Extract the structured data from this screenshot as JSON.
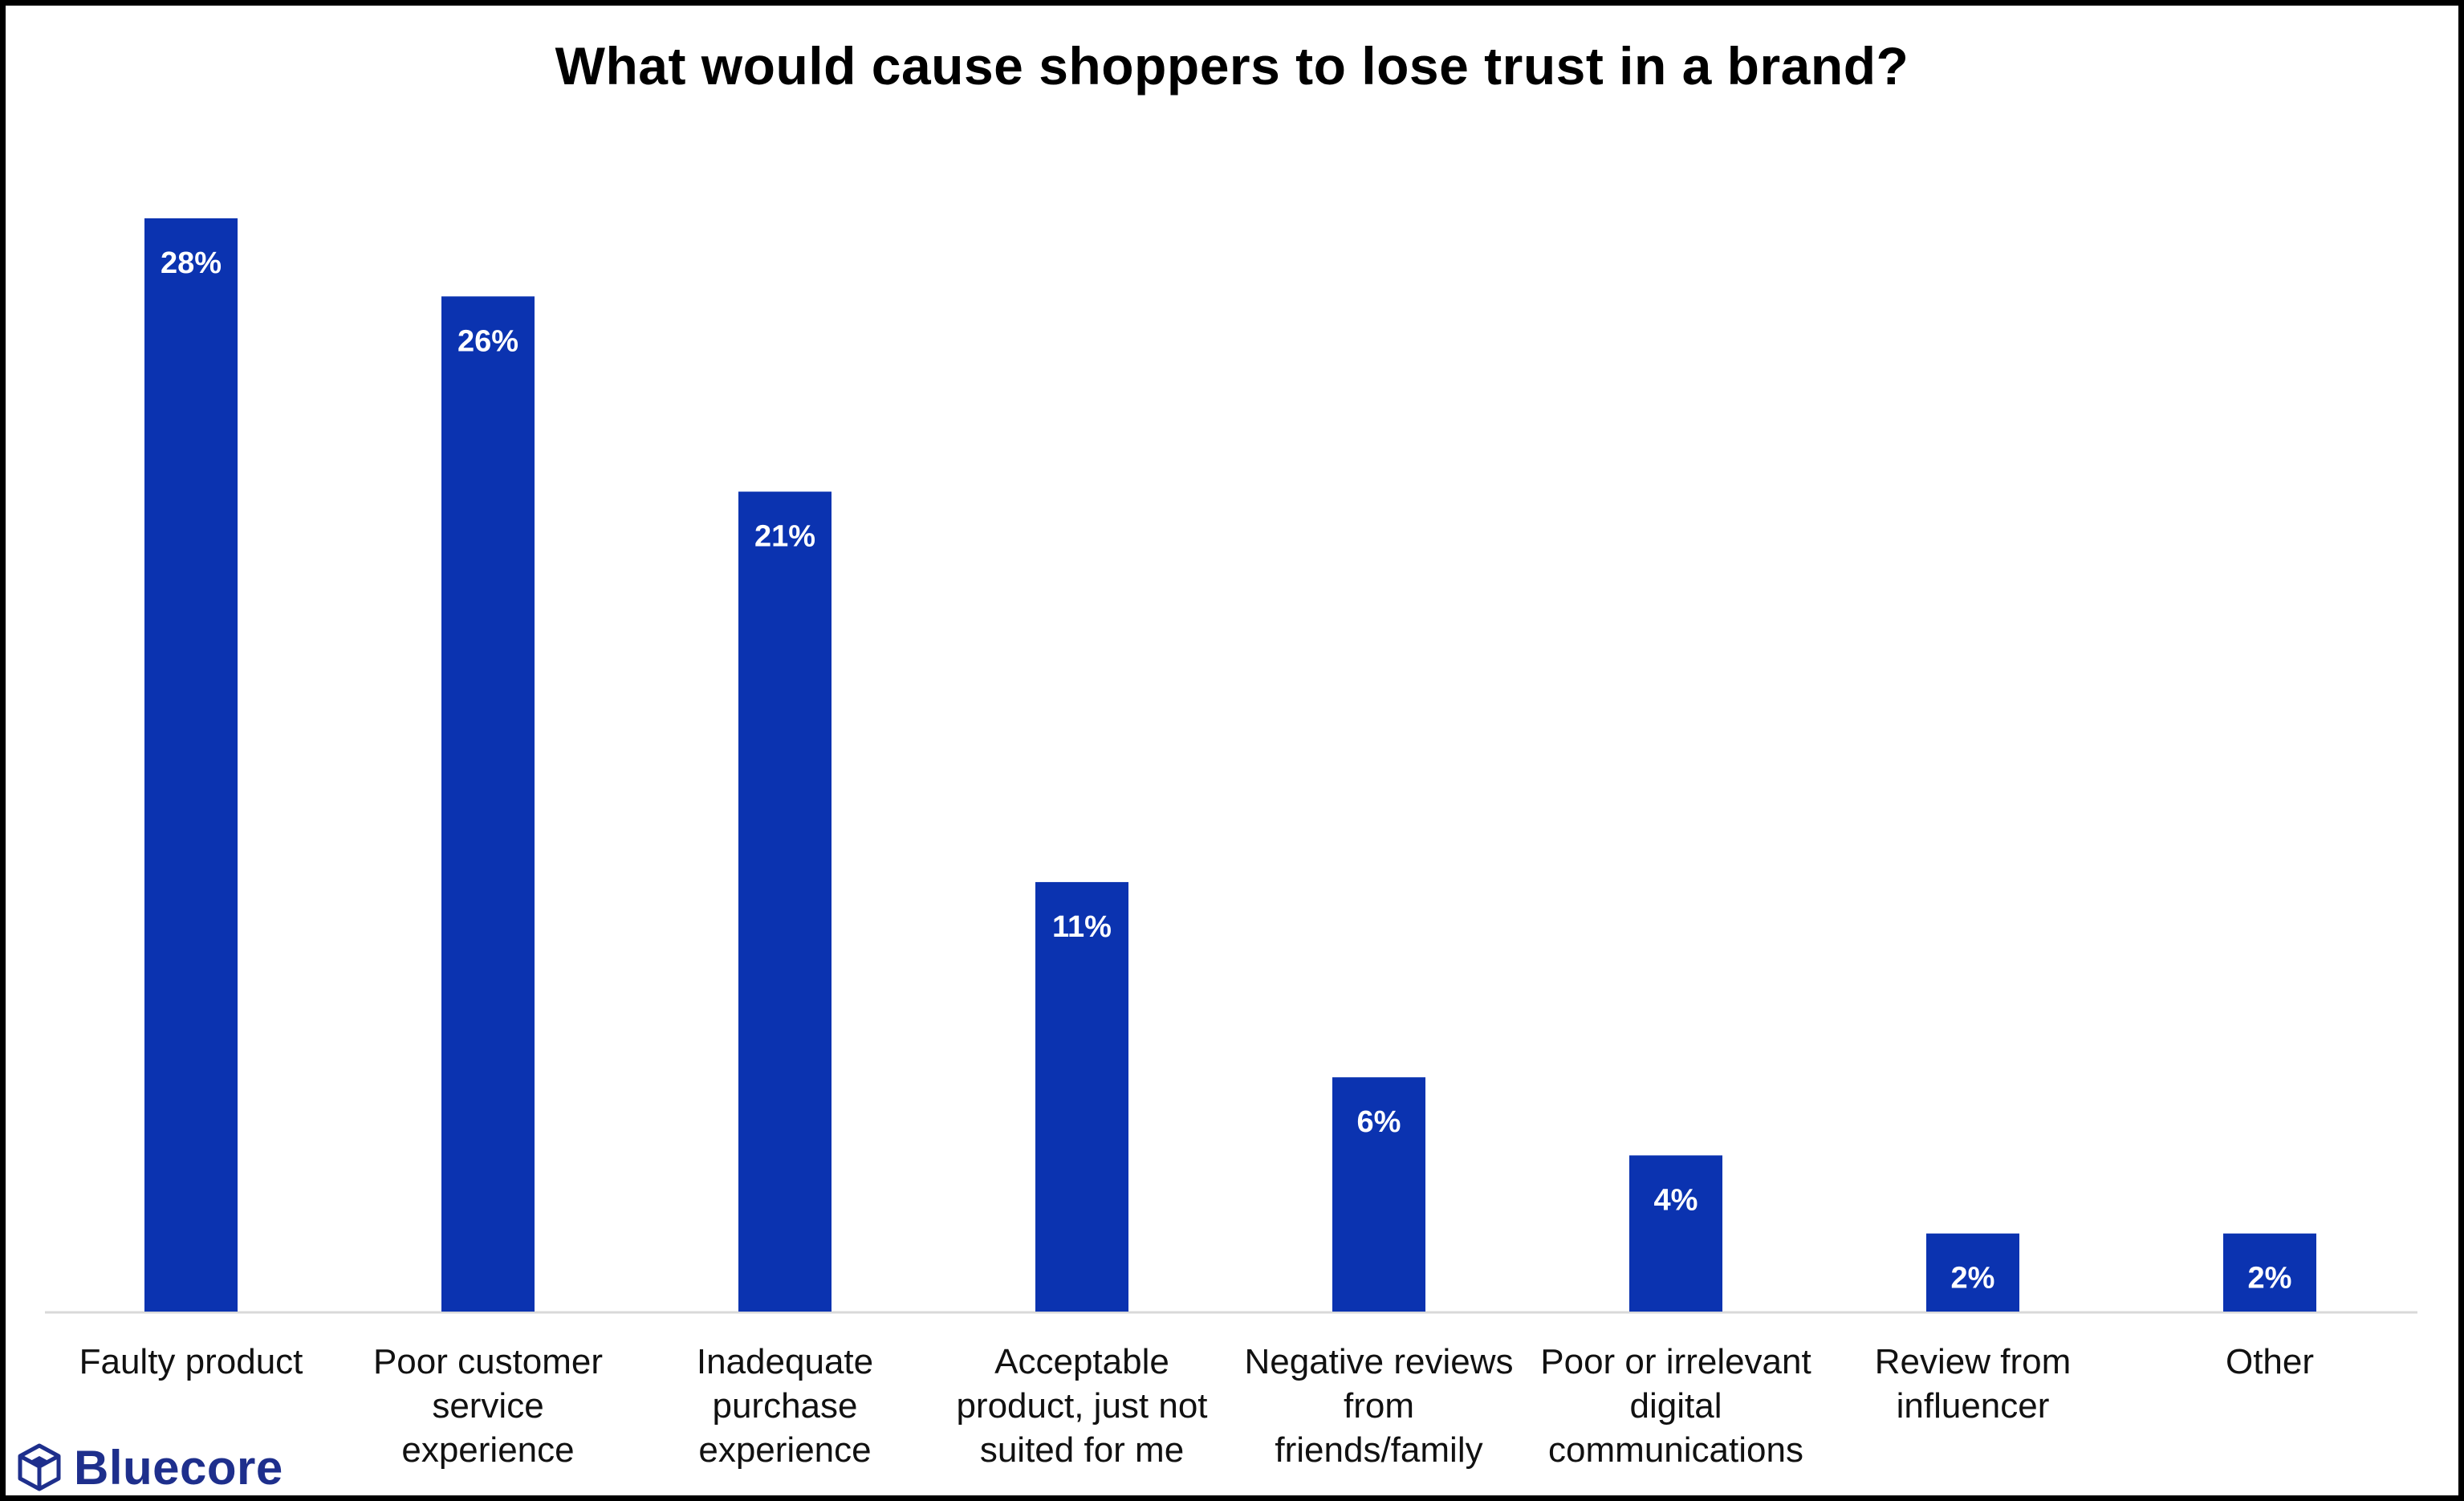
{
  "chart_data": {
    "type": "bar",
    "title": "What would cause shoppers to lose trust in a brand?",
    "categories": [
      [
        "Faulty product"
      ],
      [
        "Poor customer",
        "service",
        "experience"
      ],
      [
        "Inadequate",
        "purchase",
        "experience"
      ],
      [
        "Acceptable",
        "product, just not",
        "suited for me"
      ],
      [
        "Negative reviews",
        "from",
        "friends/family"
      ],
      [
        "Poor or irrelevant",
        "digital",
        "communications"
      ],
      [
        "Review from",
        "influencer"
      ],
      [
        "Other"
      ]
    ],
    "values": [
      28,
      26,
      21,
      11,
      6,
      4,
      2,
      2
    ],
    "data_labels": [
      "28%",
      "26%",
      "21%",
      "11%",
      "6%",
      "4%",
      "2%",
      "2%"
    ],
    "unit": "%",
    "ylim": [
      0,
      28
    ],
    "grid": false,
    "colors": {
      "bar": "#0b33b0",
      "axis": "#d9d9d9"
    }
  },
  "brand": {
    "name": "Bluecore",
    "icon": "cube-logo-icon",
    "color": "#1e2f8c"
  }
}
